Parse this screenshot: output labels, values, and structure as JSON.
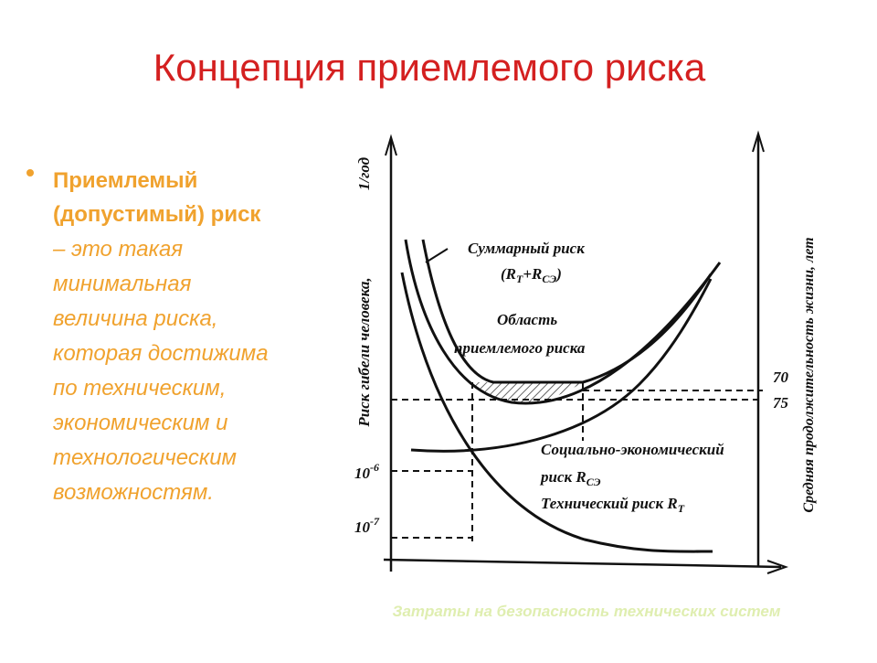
{
  "title": "Концепция приемлемого риска",
  "bullet": {
    "term_lines": [
      "Приемлемый",
      "(допустимый) риск"
    ],
    "definition_lines": [
      "– это такая",
      "минимальная",
      "величина риска,",
      "которая достижима",
      "по техническим,",
      "экономическим и",
      "технологическим",
      "возможностям."
    ]
  },
  "diagram": {
    "y_axis_label": "Риск гибели человека,",
    "y_axis_unit": "1/год",
    "y2_axis_label": "Средняя продолжительность жизни, лет",
    "x_axis_label": "Затраты на безопасность технических систем",
    "left_ticks": [
      {
        "base": "10",
        "exp": "-6"
      },
      {
        "base": "10",
        "exp": "-7"
      }
    ],
    "right_ticks": [
      "70",
      "75"
    ],
    "total_risk": {
      "line1": "Суммарный риск",
      "line2": [
        "(R",
        "T",
        "+R",
        "СЭ",
        ")"
      ]
    },
    "acceptable_area": [
      "Область",
      "приемлемого риска"
    ],
    "socio_economic_risk": {
      "line1": "Социально-экономический",
      "line2": [
        "риск R",
        "СЭ"
      ]
    },
    "technical_risk": [
      "Технический риск R",
      "T"
    ]
  }
}
